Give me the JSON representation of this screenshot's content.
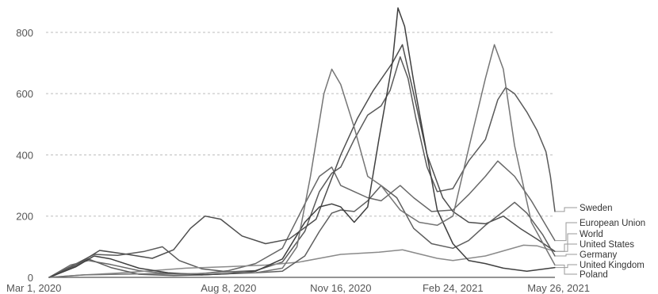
{
  "chart_data": {
    "type": "line",
    "title": "",
    "xlabel": "",
    "ylabel": "",
    "x_tick_labels": [
      "Mar 1, 2020",
      "Aug 8, 2020",
      "Nov 16, 2020",
      "Feb 24, 2021",
      "May 26, 2021"
    ],
    "x_tick_dates": [
      "2020-03-01",
      "2020-08-08",
      "2020-11-16",
      "2021-02-24",
      "2021-05-26"
    ],
    "xlim": [
      "2020-03-01",
      "2021-05-26"
    ],
    "ylim": [
      0,
      880
    ],
    "y_ticks": [
      0,
      200,
      400,
      600,
      800
    ],
    "y_tick_labels": [
      "0",
      "200",
      "400",
      "600",
      "800"
    ],
    "grid": "horizontal dashed",
    "legend_placement": "right, line-end labels",
    "series": [
      {
        "name": "Sweden",
        "color": "#5a5a5a",
        "points": [
          [
            "2020-03-01",
            0
          ],
          [
            "2020-03-20",
            35
          ],
          [
            "2020-04-10",
            75
          ],
          [
            "2020-05-01",
            72
          ],
          [
            "2020-05-25",
            85
          ],
          [
            "2020-06-10",
            100
          ],
          [
            "2020-06-25",
            55
          ],
          [
            "2020-07-15",
            28
          ],
          [
            "2020-08-08",
            18
          ],
          [
            "2020-09-01",
            22
          ],
          [
            "2020-09-25",
            50
          ],
          [
            "2020-10-15",
            150
          ],
          [
            "2020-10-28",
            280
          ],
          [
            "2020-11-08",
            340
          ],
          [
            "2020-11-16",
            360
          ],
          [
            "2020-11-28",
            450
          ],
          [
            "2020-12-10",
            530
          ],
          [
            "2020-12-22",
            560
          ],
          [
            "2020-12-30",
            610
          ],
          [
            "2021-01-08",
            720
          ],
          [
            "2021-01-15",
            650
          ],
          [
            "2021-01-22",
            520
          ],
          [
            "2021-02-01",
            360
          ],
          [
            "2021-02-10",
            280
          ],
          [
            "2021-02-24",
            290
          ],
          [
            "2021-03-10",
            380
          ],
          [
            "2021-03-25",
            450
          ],
          [
            "2021-04-05",
            580
          ],
          [
            "2021-04-12",
            620
          ],
          [
            "2021-04-20",
            600
          ],
          [
            "2021-05-01",
            540
          ],
          [
            "2021-05-10",
            480
          ],
          [
            "2021-05-18",
            410
          ],
          [
            "2021-05-22",
            330
          ],
          [
            "2021-05-26",
            215
          ]
        ]
      },
      {
        "name": "European Union",
        "color": "#686868",
        "points": [
          [
            "2020-03-01",
            0
          ],
          [
            "2020-03-20",
            40
          ],
          [
            "2020-04-05",
            55
          ],
          [
            "2020-04-25",
            42
          ],
          [
            "2020-05-20",
            22
          ],
          [
            "2020-06-15",
            12
          ],
          [
            "2020-07-15",
            12
          ],
          [
            "2020-08-08",
            22
          ],
          [
            "2020-09-01",
            45
          ],
          [
            "2020-09-25",
            95
          ],
          [
            "2020-10-15",
            240
          ],
          [
            "2020-10-28",
            330
          ],
          [
            "2020-11-08",
            360
          ],
          [
            "2020-11-16",
            300
          ],
          [
            "2020-11-28",
            280
          ],
          [
            "2020-12-10",
            260
          ],
          [
            "2020-12-22",
            250
          ],
          [
            "2021-01-08",
            300
          ],
          [
            "2021-01-20",
            260
          ],
          [
            "2021-02-05",
            215
          ],
          [
            "2021-02-24",
            220
          ],
          [
            "2021-03-10",
            270
          ],
          [
            "2021-03-25",
            330
          ],
          [
            "2021-04-05",
            380
          ],
          [
            "2021-04-20",
            330
          ],
          [
            "2021-05-05",
            250
          ],
          [
            "2021-05-26",
            120
          ]
        ]
      },
      {
        "name": "World",
        "color": "#8a8a8a",
        "points": [
          [
            "2020-03-01",
            0
          ],
          [
            "2020-04-01",
            8
          ],
          [
            "2020-05-01",
            14
          ],
          [
            "2020-06-01",
            22
          ],
          [
            "2020-07-01",
            30
          ],
          [
            "2020-08-08",
            35
          ],
          [
            "2020-09-10",
            40
          ],
          [
            "2020-10-10",
            50
          ],
          [
            "2020-11-16",
            75
          ],
          [
            "2020-12-20",
            82
          ],
          [
            "2021-01-10",
            90
          ],
          [
            "2021-02-10",
            62
          ],
          [
            "2021-02-24",
            55
          ],
          [
            "2021-03-25",
            70
          ],
          [
            "2021-04-28",
            105
          ],
          [
            "2021-05-10",
            103
          ],
          [
            "2021-05-26",
            85
          ]
        ]
      },
      {
        "name": "United States",
        "color": "#4e4e4e",
        "points": [
          [
            "2020-03-01",
            0
          ],
          [
            "2020-03-25",
            40
          ],
          [
            "2020-04-15",
            88
          ],
          [
            "2020-05-10",
            75
          ],
          [
            "2020-06-01",
            62
          ],
          [
            "2020-06-20",
            90
          ],
          [
            "2020-07-05",
            160
          ],
          [
            "2020-07-18",
            200
          ],
          [
            "2020-08-01",
            190
          ],
          [
            "2020-08-20",
            135
          ],
          [
            "2020-09-10",
            110
          ],
          [
            "2020-10-01",
            125
          ],
          [
            "2020-10-25",
            190
          ],
          [
            "2020-11-16",
            400
          ],
          [
            "2020-12-01",
            520
          ],
          [
            "2020-12-15",
            610
          ],
          [
            "2021-01-01",
            700
          ],
          [
            "2021-01-10",
            760
          ],
          [
            "2021-01-20",
            600
          ],
          [
            "2021-02-01",
            400
          ],
          [
            "2021-02-15",
            260
          ],
          [
            "2021-02-24",
            215
          ],
          [
            "2021-03-10",
            180
          ],
          [
            "2021-03-25",
            175
          ],
          [
            "2021-04-10",
            200
          ],
          [
            "2021-04-25",
            160
          ],
          [
            "2021-05-10",
            125
          ],
          [
            "2021-05-26",
            85
          ]
        ]
      },
      {
        "name": "Germany",
        "color": "#5f5f5f",
        "points": [
          [
            "2020-03-01",
            0
          ],
          [
            "2020-03-20",
            30
          ],
          [
            "2020-04-05",
            60
          ],
          [
            "2020-04-25",
            32
          ],
          [
            "2020-05-20",
            10
          ],
          [
            "2020-06-20",
            6
          ],
          [
            "2020-07-15",
            8
          ],
          [
            "2020-08-08",
            12
          ],
          [
            "2020-09-01",
            15
          ],
          [
            "2020-09-25",
            20
          ],
          [
            "2020-10-15",
            70
          ],
          [
            "2020-10-28",
            150
          ],
          [
            "2020-11-08",
            210
          ],
          [
            "2020-11-16",
            220
          ],
          [
            "2020-11-28",
            215
          ],
          [
            "2020-12-10",
            250
          ],
          [
            "2020-12-22",
            300
          ],
          [
            "2021-01-05",
            260
          ],
          [
            "2021-01-20",
            160
          ],
          [
            "2021-02-05",
            110
          ],
          [
            "2021-02-24",
            95
          ],
          [
            "2021-03-10",
            120
          ],
          [
            "2021-03-25",
            170
          ],
          [
            "2021-04-10",
            215
          ],
          [
            "2021-04-20",
            245
          ],
          [
            "2021-05-01",
            210
          ],
          [
            "2021-05-15",
            140
          ],
          [
            "2021-05-26",
            70
          ]
        ]
      },
      {
        "name": "United Kingdom",
        "color": "#3f3f3f",
        "points": [
          [
            "2020-03-01",
            0
          ],
          [
            "2020-03-25",
            35
          ],
          [
            "2020-04-10",
            70
          ],
          [
            "2020-04-25",
            60
          ],
          [
            "2020-05-20",
            30
          ],
          [
            "2020-06-15",
            15
          ],
          [
            "2020-07-15",
            8
          ],
          [
            "2020-08-08",
            12
          ],
          [
            "2020-09-01",
            20
          ],
          [
            "2020-09-25",
            60
          ],
          [
            "2020-10-15",
            180
          ],
          [
            "2020-10-28",
            230
          ],
          [
            "2020-11-08",
            240
          ],
          [
            "2020-11-16",
            230
          ],
          [
            "2020-11-28",
            180
          ],
          [
            "2020-12-10",
            230
          ],
          [
            "2020-12-20",
            450
          ],
          [
            "2021-01-01",
            700
          ],
          [
            "2021-01-06",
            880
          ],
          [
            "2021-01-12",
            820
          ],
          [
            "2021-01-20",
            640
          ],
          [
            "2021-02-01",
            400
          ],
          [
            "2021-02-10",
            220
          ],
          [
            "2021-02-24",
            110
          ],
          [
            "2021-03-10",
            55
          ],
          [
            "2021-03-25",
            45
          ],
          [
            "2021-04-10",
            30
          ],
          [
            "2021-05-01",
            20
          ],
          [
            "2021-05-26",
            32
          ]
        ]
      },
      {
        "name": "Poland",
        "color": "#757575",
        "points": [
          [
            "2020-03-01",
            0
          ],
          [
            "2020-04-01",
            8
          ],
          [
            "2020-05-01",
            10
          ],
          [
            "2020-06-01",
            12
          ],
          [
            "2020-07-01",
            10
          ],
          [
            "2020-08-08",
            18
          ],
          [
            "2020-09-01",
            15
          ],
          [
            "2020-09-25",
            30
          ],
          [
            "2020-10-08",
            100
          ],
          [
            "2020-10-20",
            330
          ],
          [
            "2020-11-01",
            600
          ],
          [
            "2020-11-08",
            680
          ],
          [
            "2020-11-16",
            630
          ],
          [
            "2020-11-28",
            490
          ],
          [
            "2020-12-10",
            330
          ],
          [
            "2020-12-22",
            300
          ],
          [
            "2021-01-08",
            220
          ],
          [
            "2021-01-25",
            180
          ],
          [
            "2021-02-10",
            170
          ],
          [
            "2021-02-24",
            200
          ],
          [
            "2021-03-10",
            420
          ],
          [
            "2021-03-25",
            650
          ],
          [
            "2021-04-02",
            760
          ],
          [
            "2021-04-10",
            680
          ],
          [
            "2021-04-20",
            430
          ],
          [
            "2021-05-05",
            180
          ],
          [
            "2021-05-26",
            40
          ]
        ]
      }
    ]
  }
}
